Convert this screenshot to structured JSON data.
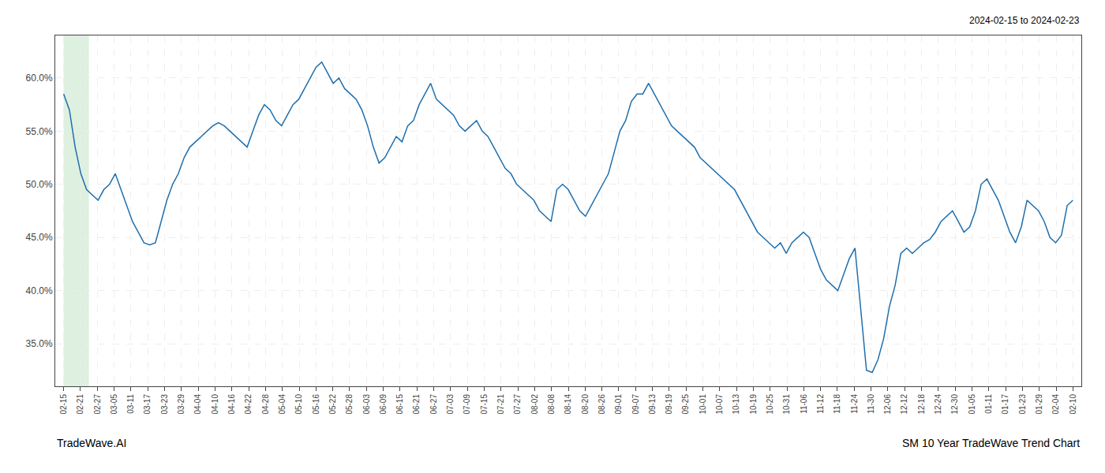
{
  "chart_data": {
    "type": "line",
    "annotations": [
      "2024-02-15 to 2024-02-23",
      "TradeWave.AI",
      "SM 10 Year TradeWave Trend Chart"
    ],
    "series": [
      {
        "color": "#1f6fad",
        "x": [
          0,
          0.3409,
          0.6818,
          1.0227,
          1.3636,
          1.7045,
          2.0455,
          2.3864,
          2.7273,
          3.0682,
          3.4091,
          3.75,
          4.0909,
          4.4318,
          4.7727,
          5.1136,
          5.4545,
          5.7955,
          6.1364,
          6.4773,
          6.8182,
          7.1591,
          7.5,
          7.8409,
          8.1818,
          8.5227,
          8.8636,
          9.2045,
          9.5455,
          9.8864,
          10.2273,
          10.5682,
          10.9091,
          11.25,
          11.5909,
          11.9318,
          12.2727,
          12.6136,
          12.9545,
          13.2955,
          13.6364,
          13.9773,
          14.3182,
          14.6591,
          15,
          15.3409,
          15.6818,
          16.0227,
          16.3636,
          16.7045,
          17.0455,
          17.3864,
          17.7273,
          18.0682,
          18.4091,
          18.75,
          19.0909,
          19.4318,
          19.7727,
          20.1136,
          20.4545,
          20.7955,
          21.1364,
          21.4773,
          21.8182,
          22.1591,
          22.5,
          22.8409,
          23.1818,
          23.5227,
          23.8636,
          24.2045,
          24.5455,
          24.8864,
          25.2273,
          25.5682,
          25.9091,
          26.25,
          26.5909,
          26.9318,
          27.2727,
          27.6136,
          27.9545,
          28.2955,
          28.6364,
          28.9773,
          29.3182,
          29.6591,
          30,
          30.3409,
          30.6818,
          31.0227,
          31.3636,
          31.7045,
          32.0455,
          32.3864,
          32.7273,
          33.0682,
          33.4091,
          33.75,
          34.0909,
          34.4318,
          34.7727,
          35.1136,
          35.4545,
          35.7955,
          36.1364,
          36.4773,
          36.8182,
          37.1591,
          37.5,
          37.8409,
          38.1818,
          38.5227,
          38.8636,
          39.2045,
          39.5455,
          39.8864,
          40.2273,
          40.5682,
          40.9091,
          41.25,
          41.5909,
          41.9318,
          42.2727,
          42.6136,
          42.9545,
          43.2955,
          43.6364,
          43.9773,
          44.3182,
          44.6591,
          45,
          45.3409,
          45.6818,
          46.0227,
          46.3636,
          46.7045,
          47.0455,
          47.3864,
          47.7273,
          48.0682,
          48.4091,
          48.75,
          49.0909,
          49.4318,
          49.7727,
          50.1136,
          50.4545,
          50.7955,
          51.1364,
          51.4773,
          51.8182,
          52.1591,
          52.5,
          52.8409,
          53.1818,
          53.5227,
          53.8636,
          54.2045,
          54.5455,
          54.8864,
          55.2273,
          55.5682,
          55.9091,
          56.25,
          56.5909,
          56.9318,
          57.2727,
          57.6136,
          57.9545,
          58.2955,
          58.6364,
          58.9773,
          59.3182,
          59.6591,
          60
        ],
        "values": [
          58.5,
          57.0,
          53.5,
          51.0,
          49.5,
          49.0,
          48.5,
          49.5,
          50.0,
          51.0,
          49.5,
          48.0,
          46.5,
          45.5,
          44.5,
          44.3,
          44.5,
          46.5,
          48.5,
          50.0,
          51.0,
          52.5,
          53.5,
          54.0,
          54.5,
          55.0,
          55.5,
          55.8,
          55.5,
          55.0,
          54.5,
          54.0,
          53.5,
          55.0,
          56.5,
          57.5,
          57.0,
          56.0,
          55.5,
          56.5,
          57.5,
          58.0,
          59.0,
          60.0,
          61.0,
          61.5,
          60.5,
          59.5,
          60.0,
          59.0,
          58.5,
          58.0,
          57.0,
          55.5,
          53.5,
          52.0,
          52.5,
          53.5,
          54.5,
          54.0,
          55.5,
          56.0,
          57.5,
          58.5,
          59.5,
          58.0,
          57.5,
          57.0,
          56.5,
          55.5,
          55.0,
          55.5,
          56.0,
          55.0,
          54.5,
          53.5,
          52.5,
          51.5,
          51.0,
          50.0,
          49.5,
          49.0,
          48.5,
          47.5,
          47.0,
          46.5,
          49.5,
          50.0,
          49.5,
          48.5,
          47.5,
          47.0,
          48.0,
          49.0,
          50.0,
          51.0,
          53.0,
          55.0,
          56.0,
          57.8,
          58.5,
          58.5,
          59.5,
          58.5,
          57.5,
          56.5,
          55.5,
          55.0,
          54.5,
          54.0,
          53.5,
          52.5,
          52.0,
          51.5,
          51.0,
          50.5,
          50.0,
          49.5,
          48.5,
          47.5,
          46.5,
          45.5,
          45.0,
          44.5,
          44.0,
          44.5,
          43.5,
          44.5,
          45.0,
          45.5,
          45.0,
          43.5,
          42.0,
          41.0,
          40.5,
          40.0,
          41.5,
          43.0,
          44.0,
          38.5,
          32.5,
          32.3,
          33.5,
          35.5,
          38.5,
          40.5,
          43.5,
          44.0,
          43.5,
          44.0,
          44.5,
          44.8,
          45.5,
          46.5,
          47.0,
          47.5,
          46.5,
          45.5,
          46.0,
          47.5,
          50.0,
          50.5,
          49.5,
          48.5,
          47.0,
          45.5,
          44.5,
          46.0,
          48.5,
          48.0,
          47.5,
          46.5,
          45.0,
          44.5,
          45.2,
          48.0,
          48.5
        ]
      }
    ],
    "bands": [
      {
        "x0": 0.0,
        "x1": 1.5,
        "color": "#c8e6c9"
      }
    ],
    "xlim": [
      -0.5,
      60.5
    ],
    "xticks": [
      {
        "value": 0,
        "label": "02-15"
      },
      {
        "value": 1,
        "label": "02-21"
      },
      {
        "value": 2,
        "label": "02-27"
      },
      {
        "value": 3,
        "label": "03-05"
      },
      {
        "value": 4,
        "label": "03-11"
      },
      {
        "value": 5,
        "label": "03-17"
      },
      {
        "value": 6,
        "label": "03-23"
      },
      {
        "value": 7,
        "label": "03-29"
      },
      {
        "value": 8,
        "label": "04-04"
      },
      {
        "value": 9,
        "label": "04-10"
      },
      {
        "value": 10,
        "label": "04-16"
      },
      {
        "value": 11,
        "label": "04-22"
      },
      {
        "value": 12,
        "label": "04-28"
      },
      {
        "value": 13,
        "label": "05-04"
      },
      {
        "value": 14,
        "label": "05-10"
      },
      {
        "value": 15,
        "label": "05-16"
      },
      {
        "value": 16,
        "label": "05-22"
      },
      {
        "value": 17,
        "label": "05-28"
      },
      {
        "value": 18,
        "label": "06-03"
      },
      {
        "value": 19,
        "label": "06-09"
      },
      {
        "value": 20,
        "label": "06-15"
      },
      {
        "value": 21,
        "label": "06-21"
      },
      {
        "value": 22,
        "label": "06-27"
      },
      {
        "value": 23,
        "label": "07-03"
      },
      {
        "value": 24,
        "label": "07-09"
      },
      {
        "value": 25,
        "label": "07-15"
      },
      {
        "value": 26,
        "label": "07-21"
      },
      {
        "value": 27,
        "label": "07-27"
      },
      {
        "value": 28,
        "label": "08-02"
      },
      {
        "value": 29,
        "label": "08-08"
      },
      {
        "value": 30,
        "label": "08-14"
      },
      {
        "value": 31,
        "label": "08-20"
      },
      {
        "value": 32,
        "label": "08-26"
      },
      {
        "value": 33,
        "label": "09-01"
      },
      {
        "value": 34,
        "label": "09-07"
      },
      {
        "value": 35,
        "label": "09-13"
      },
      {
        "value": 36,
        "label": "09-19"
      },
      {
        "value": 37,
        "label": "09-25"
      },
      {
        "value": 38,
        "label": "10-01"
      },
      {
        "value": 39,
        "label": "10-07"
      },
      {
        "value": 40,
        "label": "10-13"
      },
      {
        "value": 41,
        "label": "10-19"
      },
      {
        "value": 42,
        "label": "10-25"
      },
      {
        "value": 43,
        "label": "10-31"
      },
      {
        "value": 44,
        "label": "11-06"
      },
      {
        "value": 45,
        "label": "11-12"
      },
      {
        "value": 46,
        "label": "11-18"
      },
      {
        "value": 47,
        "label": "11-24"
      },
      {
        "value": 48,
        "label": "11-30"
      },
      {
        "value": 49,
        "label": "12-06"
      },
      {
        "value": 50,
        "label": "12-12"
      },
      {
        "value": 51,
        "label": "12-18"
      },
      {
        "value": 52,
        "label": "12-24"
      },
      {
        "value": 53,
        "label": "12-30"
      },
      {
        "value": 54,
        "label": "01-05"
      },
      {
        "value": 55,
        "label": "01-11"
      },
      {
        "value": 56,
        "label": "01-17"
      },
      {
        "value": 57,
        "label": "01-23"
      },
      {
        "value": 58,
        "label": "01-29"
      },
      {
        "value": 59,
        "label": "02-04"
      },
      {
        "value": 60,
        "label": "02-10"
      }
    ],
    "ylim": [
      31.0,
      64.0
    ],
    "yticks": [
      {
        "value": 35.0,
        "label": "35.0%"
      },
      {
        "value": 40.0,
        "label": "40.0%"
      },
      {
        "value": 45.0,
        "label": "45.0%"
      },
      {
        "value": 50.0,
        "label": "50.0%"
      },
      {
        "value": 55.0,
        "label": "55.0%"
      },
      {
        "value": 60.0,
        "label": "60.0%"
      }
    ],
    "grid": true
  }
}
